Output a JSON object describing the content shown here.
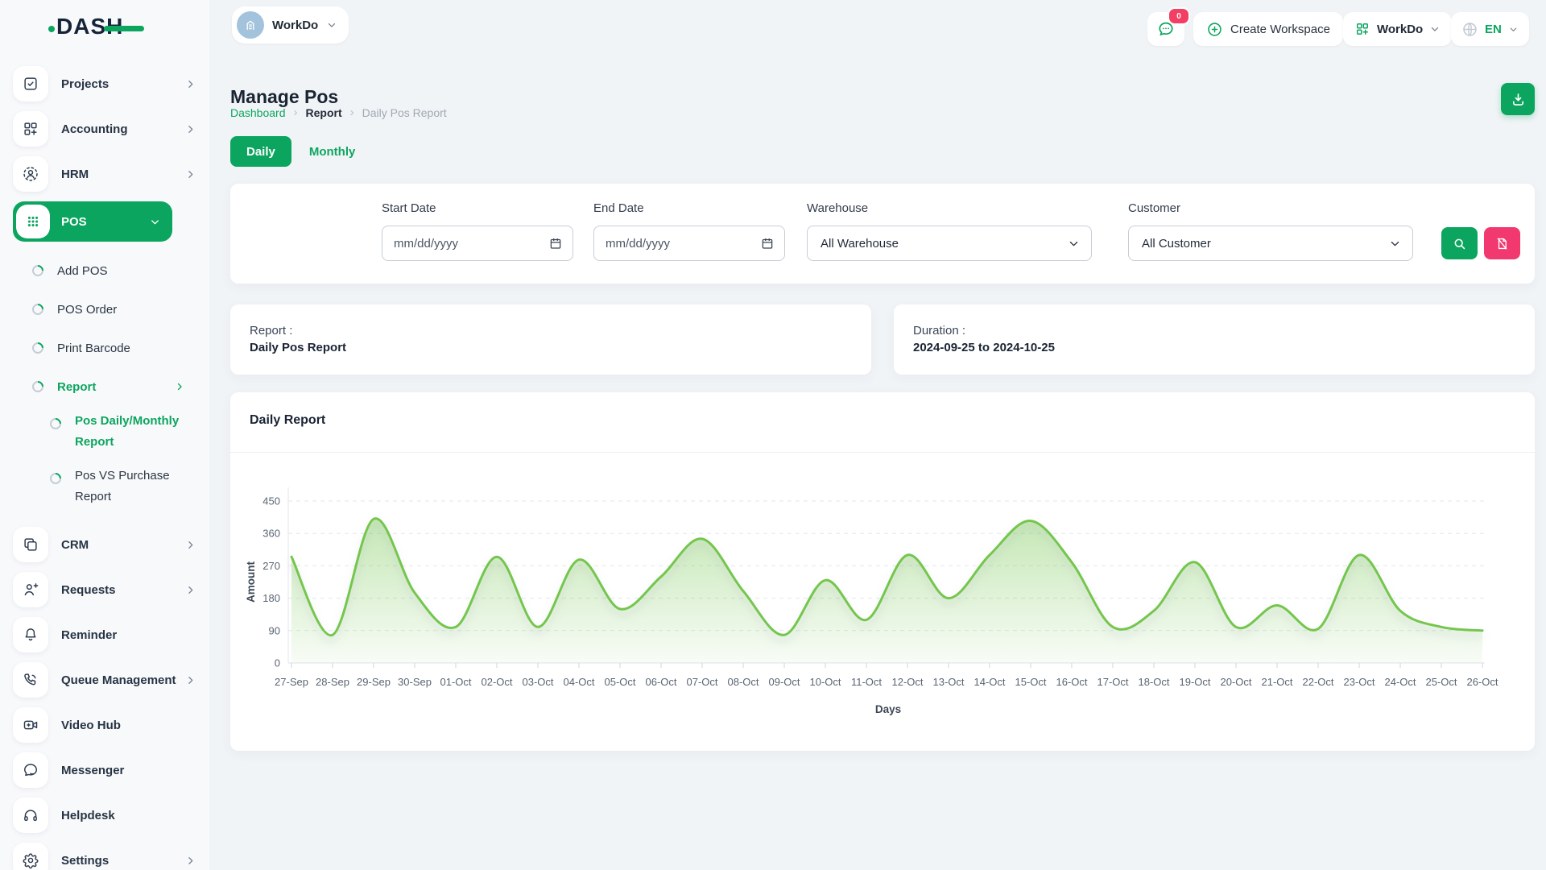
{
  "header": {
    "logo_text": "DASH",
    "workspace_name": "WorkDo",
    "chat_badge": "0",
    "create_workspace_label": "Create Workspace",
    "account_label": "WorkDo",
    "language": "EN",
    "icons": [
      "building-icon",
      "chevron-down-icon",
      "chat-icon",
      "plus-circle-icon",
      "grid-plus-icon",
      "globe-icon"
    ]
  },
  "sidebar": {
    "items": [
      {
        "label": "Projects",
        "icon": "projects",
        "indent": 0,
        "chevron": "right"
      },
      {
        "label": "Accounting",
        "icon": "accounting",
        "indent": 0,
        "chevron": "right"
      },
      {
        "label": "HRM",
        "icon": "hrm",
        "indent": 0,
        "chevron": "right"
      },
      {
        "label": "POS",
        "icon": "pos",
        "indent": 0,
        "chevron": "down",
        "active": true
      },
      {
        "label": "Add POS",
        "indent": 1
      },
      {
        "label": "POS Order",
        "indent": 1
      },
      {
        "label": "Print Barcode",
        "indent": 1
      },
      {
        "label": "Report",
        "indent": 1,
        "chevron": "right",
        "selected": true
      },
      {
        "label": "Pos Daily/Monthly Report",
        "indent": 2,
        "selected": true
      },
      {
        "label": "Pos VS Purchase Report",
        "indent": 2
      },
      {
        "label": "CRM",
        "icon": "crm",
        "indent": 0,
        "chevron": "right"
      },
      {
        "label": "Requests",
        "icon": "requests",
        "indent": 0,
        "chevron": "right"
      },
      {
        "label": "Reminder",
        "icon": "reminder",
        "indent": 0
      },
      {
        "label": "Queue Management",
        "icon": "queue",
        "indent": 0,
        "chevron": "right"
      },
      {
        "label": "Video Hub",
        "icon": "video",
        "indent": 0
      },
      {
        "label": "Messenger",
        "icon": "messenger",
        "indent": 0
      },
      {
        "label": "Helpdesk",
        "icon": "helpdesk",
        "indent": 0
      },
      {
        "label": "Settings",
        "icon": "settings",
        "indent": 0,
        "chevron": "right"
      }
    ]
  },
  "page": {
    "title": "Manage Pos",
    "breadcrumb": [
      "Dashboard",
      "Report",
      "Daily Pos Report"
    ],
    "tabs": [
      {
        "label": "Daily",
        "active": true
      },
      {
        "label": "Monthly",
        "active": false
      }
    ]
  },
  "filters": {
    "start_date": {
      "label": "Start Date",
      "placeholder": "mm/dd/yyyy"
    },
    "end_date": {
      "label": "End Date",
      "placeholder": "mm/dd/yyyy"
    },
    "warehouse": {
      "label": "Warehouse",
      "value": "All Warehouse"
    },
    "customer": {
      "label": "Customer",
      "value": "All Customer"
    }
  },
  "summary": {
    "report_label": "Report :",
    "report_value": "Daily Pos Report",
    "duration_label": "Duration :",
    "duration_value": "2024-09-25 to 2024-10-25"
  },
  "chart_data": {
    "type": "area",
    "title": "Daily Report",
    "xlabel": "Days",
    "ylabel": "Amount",
    "ylim": [
      0,
      450
    ],
    "yticks": [
      0,
      90,
      180,
      270,
      360,
      450
    ],
    "grid": "dashed-horizontal",
    "legend": "none",
    "line_color": "#74c64e",
    "categories": [
      "27-Sep",
      "28-Sep",
      "29-Sep",
      "30-Sep",
      "01-Oct",
      "02-Oct",
      "03-Oct",
      "04-Oct",
      "05-Oct",
      "06-Oct",
      "07-Oct",
      "08-Oct",
      "09-Oct",
      "10-Oct",
      "11-Oct",
      "12-Oct",
      "13-Oct",
      "14-Oct",
      "15-Oct",
      "16-Oct",
      "17-Oct",
      "18-Oct",
      "19-Oct",
      "20-Oct",
      "21-Oct",
      "22-Oct",
      "23-Oct",
      "24-Oct",
      "25-Oct",
      "26-Oct"
    ],
    "values": [
      295,
      78,
      400,
      195,
      100,
      295,
      100,
      287,
      150,
      240,
      345,
      200,
      78,
      230,
      120,
      300,
      180,
      300,
      395,
      280,
      100,
      145,
      280,
      100,
      160,
      95,
      300,
      145,
      100,
      90
    ]
  },
  "colors": {
    "primary_green": "#0ca55f",
    "pink": "#f2396f",
    "badge_pink": "#f23f63",
    "chart_line": "#74c64e",
    "dark_text": "#1a2433",
    "muted_text": "#a0a8b3",
    "avatar_blue": "#a3c3dc"
  }
}
